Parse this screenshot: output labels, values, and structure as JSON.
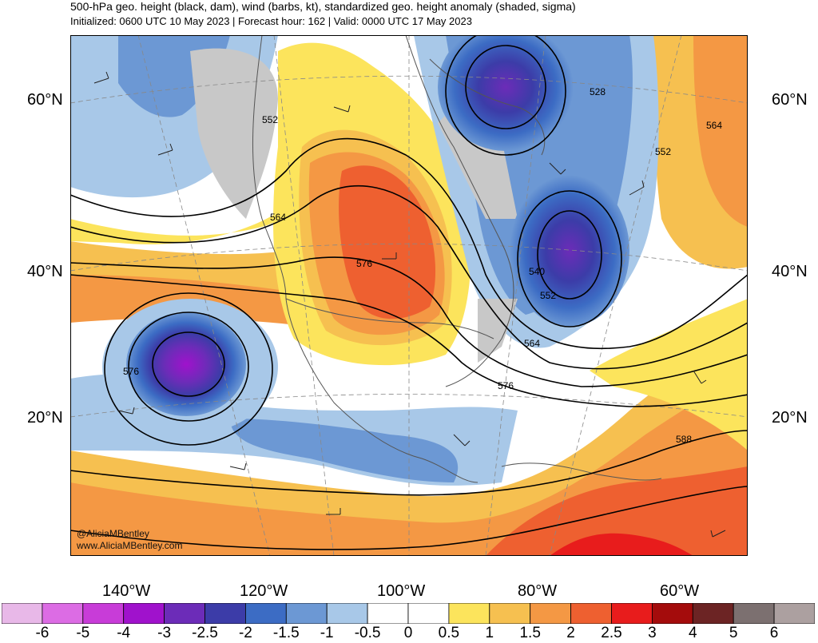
{
  "header": {
    "title": "500-hPa geo. height (black, dam), wind (barbs, kt), standardized geo. height anomaly (shaded, sigma)",
    "subtitle": "Initialized: 0600 UTC 10 May 2023 | Forecast hour: 162 | Valid: 0000 UTC 17 May 2023"
  },
  "lat_labels": [
    "60°N",
    "40°N",
    "20°N"
  ],
  "lon_labels": [
    "140°W",
    "120°W",
    "100°W",
    "80°W",
    "60°W"
  ],
  "contour_labels": [
    "552",
    "564",
    "576",
    "576",
    "528",
    "552",
    "564",
    "540",
    "552",
    "564",
    "576",
    "588"
  ],
  "credit": {
    "handle": "@AliciaMBentley",
    "url": "www.AliciaMBentley.com"
  },
  "colorbar": {
    "labels": [
      "-6",
      "-5",
      "-4",
      "-3",
      "-2.5",
      "-2",
      "-1.5",
      "-1",
      "-0.5",
      "0",
      "0.5",
      "1",
      "1.5",
      "2",
      "2.5",
      "3",
      "4",
      "5",
      "6"
    ],
    "colors": [
      "#e8b8e8",
      "#dc6ce4",
      "#c83cd8",
      "#a012cc",
      "#6c2cb8",
      "#3c3ca8",
      "#3c6cc4",
      "#6c98d4",
      "#a8c8e8",
      "#ffffff",
      "#ffffff",
      "#fce45c",
      "#f6c050",
      "#f49844",
      "#ee6030",
      "#e81c1c",
      "#a40c0c",
      "#6c2424",
      "#7c7070",
      "#aca0a0"
    ]
  }
}
